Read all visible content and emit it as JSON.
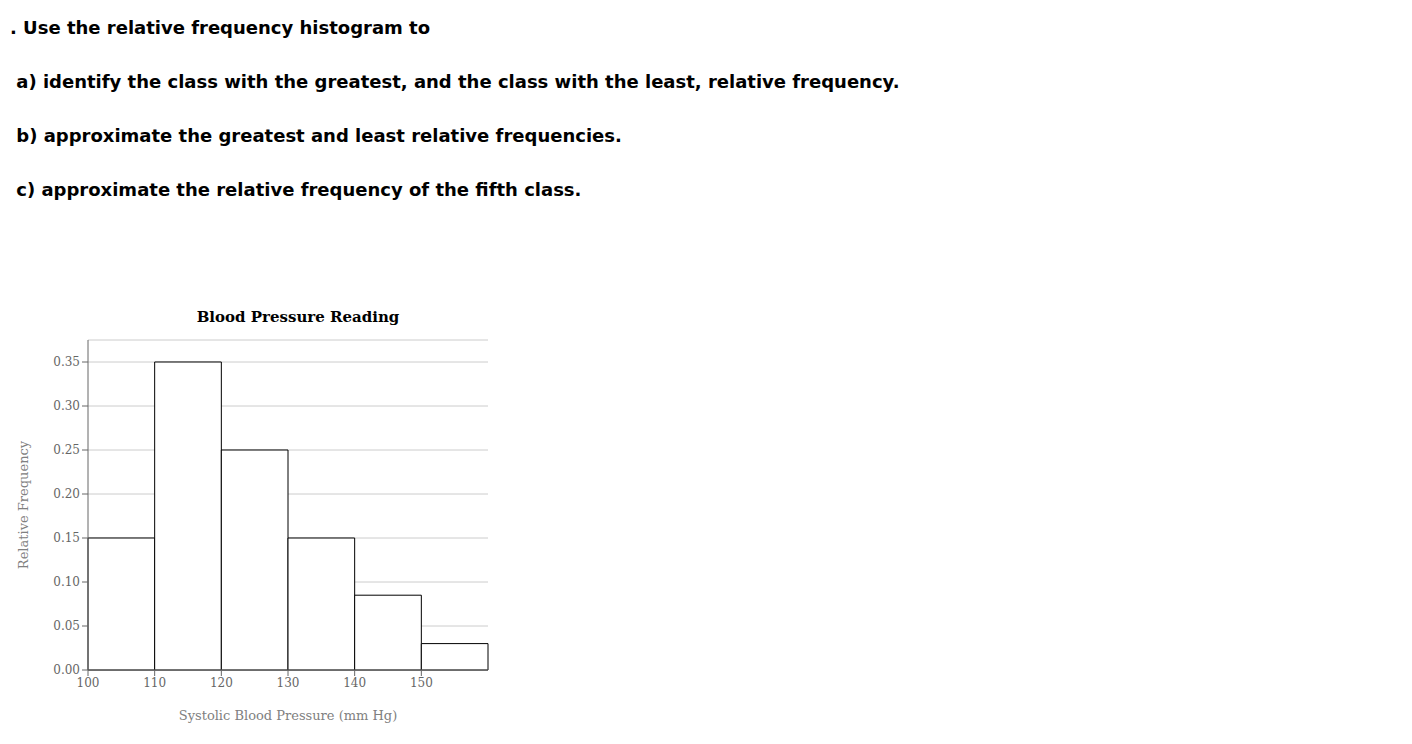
{
  "chart_data": {
    "type": "histogram",
    "title": "Blood Pressure Reading",
    "xlabel": "Systolic Blood Pressure (mm Hg)",
    "ylabel": "Relative Frequency",
    "annotations": [
      ". Use the relative frequency histogram to",
      " a) identify the class with the greatest, and the class with the least, relative frequency.",
      " b) approximate the greatest and least relative frequencies.",
      " c) approximate the relative frequency of the fifth class."
    ],
    "bins": [
      100,
      110,
      120,
      130,
      140,
      150,
      160
    ],
    "values": [
      0.15,
      0.35,
      0.25,
      0.15,
      0.085,
      0.03
    ],
    "color": "#ffffff",
    "xlim": [
      100,
      160
    ],
    "xticks": [
      100,
      110,
      120,
      130,
      140,
      150
    ],
    "ylim": [
      0.0,
      0.375
    ],
    "yticks": [
      {
        "value": 0.0,
        "label": "0.00"
      },
      {
        "value": 0.05,
        "label": "0.05"
      },
      {
        "value": 0.1,
        "label": "0.10"
      },
      {
        "value": 0.15,
        "label": "0.15"
      },
      {
        "value": 0.2,
        "label": "0.20"
      },
      {
        "value": 0.25,
        "label": "0.25"
      },
      {
        "value": 0.3,
        "label": "0.30"
      },
      {
        "value": 0.35,
        "label": "0.35"
      }
    ],
    "grid": true
  }
}
